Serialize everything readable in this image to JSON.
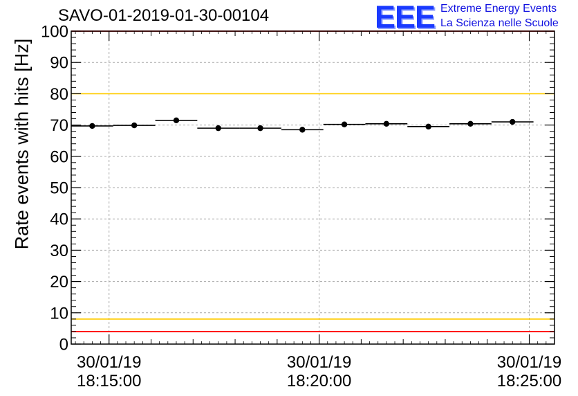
{
  "chart_data": {
    "type": "scatter",
    "title": "SAVO-01-2019-01-30-00104",
    "ylabel": "Rate events with hits [Hz]",
    "xlabel": "",
    "ylim": [
      0,
      100
    ],
    "y_ticks": [
      0,
      10,
      20,
      30,
      40,
      50,
      60,
      70,
      80,
      90,
      100
    ],
    "x_range_minutes": [
      -0.9,
      10.6
    ],
    "x_ticks": [
      {
        "minute": 0,
        "date": "30/01/19",
        "time": "18:15:00"
      },
      {
        "minute": 5,
        "date": "30/01/19",
        "time": "18:20:00"
      },
      {
        "minute": 10,
        "date": "30/01/19",
        "time": "18:25:00"
      }
    ],
    "points": [
      {
        "x": -0.4,
        "y": 69.7,
        "x_err": 0.5,
        "y_err": 0.4
      },
      {
        "x": 0.6,
        "y": 69.9,
        "x_err": 0.5,
        "y_err": 0.4
      },
      {
        "x": 1.6,
        "y": 71.5,
        "x_err": 0.5,
        "y_err": 0.4
      },
      {
        "x": 2.6,
        "y": 69.0,
        "x_err": 0.5,
        "y_err": 0.4
      },
      {
        "x": 3.6,
        "y": 69.0,
        "x_err": 0.5,
        "y_err": 0.4
      },
      {
        "x": 4.6,
        "y": 68.5,
        "x_err": 0.5,
        "y_err": 0.4
      },
      {
        "x": 5.6,
        "y": 70.2,
        "x_err": 0.5,
        "y_err": 0.4
      },
      {
        "x": 6.6,
        "y": 70.4,
        "x_err": 0.5,
        "y_err": 0.4
      },
      {
        "x": 7.6,
        "y": 69.5,
        "x_err": 0.5,
        "y_err": 0.4
      },
      {
        "x": 8.6,
        "y": 70.4,
        "x_err": 0.5,
        "y_err": 0.4
      },
      {
        "x": 9.6,
        "y": 71.0,
        "x_err": 0.5,
        "y_err": 0.4
      }
    ],
    "reference_lines": [
      {
        "y": 100,
        "color": "#ff0000"
      },
      {
        "y": 80,
        "color": "#ffcc00"
      },
      {
        "y": 8,
        "color": "#ffcc00"
      },
      {
        "y": 4,
        "color": "#ff0000"
      }
    ],
    "grid": true,
    "legend": "none"
  },
  "logo": {
    "mark": "EEE",
    "line1": "Extreme Energy Events",
    "line2": "La Scienza nelle Scuole",
    "color": "#1a3aff"
  }
}
